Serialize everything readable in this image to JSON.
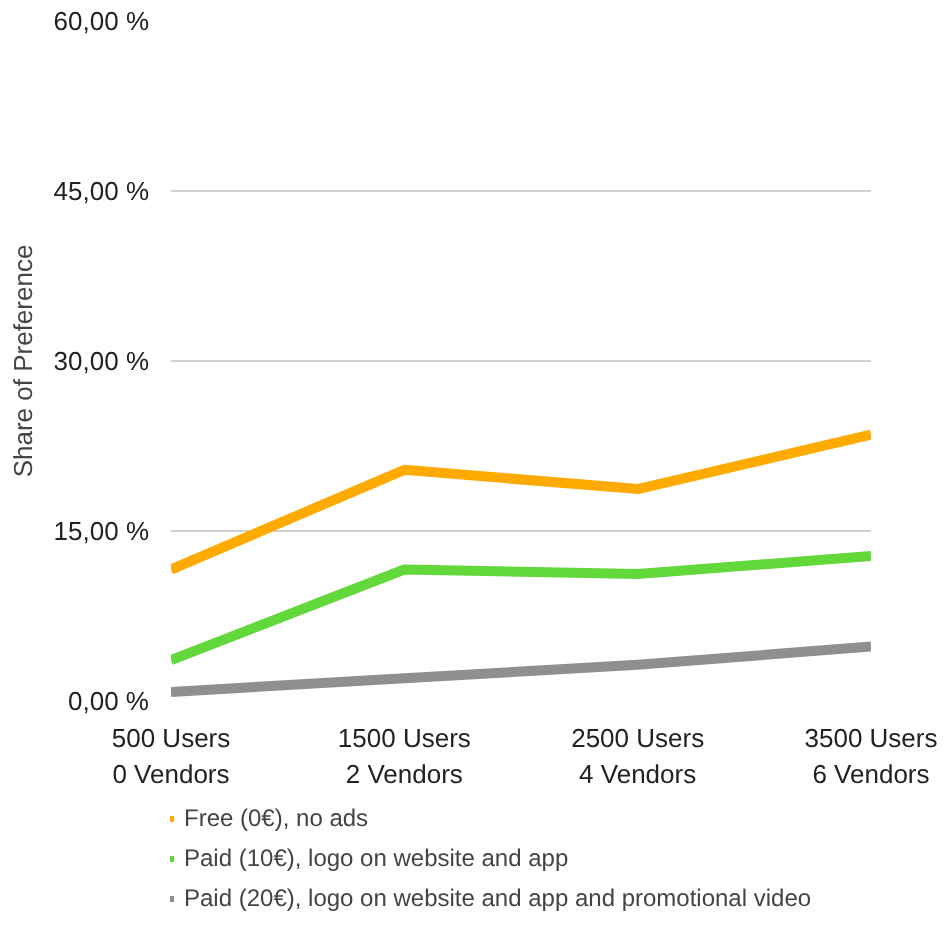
{
  "chart_data": {
    "type": "line",
    "ylabel": "Share of Preference",
    "categories": [
      "500 Users\n0 Vendors",
      "1500 Users\n2 Vendors",
      "2500 Users\n4 Vendors",
      "3500 Users\n6 Vendors"
    ],
    "series": [
      {
        "name": "Free (0€), no ads",
        "color": "#ffaa00",
        "values": [
          11.6,
          20.4,
          18.7,
          23.5
        ]
      },
      {
        "name": "Paid (10€), logo on website and app",
        "color": "#63d83a",
        "values": [
          3.6,
          11.6,
          11.2,
          12.8
        ]
      },
      {
        "name": "Paid (20€), logo on website and app and promotional video",
        "color": "#8f8f8f",
        "values": [
          0.8,
          2.0,
          3.2,
          4.8
        ]
      }
    ],
    "ylim": [
      0,
      60
    ],
    "yticks": [
      {
        "value": 0,
        "label": "0,00 %"
      },
      {
        "value": 15,
        "label": "15,00 %"
      },
      {
        "value": 30,
        "label": "30,00 %"
      },
      {
        "value": 45,
        "label": "45,00 %"
      },
      {
        "value": 60,
        "label": "60,00 %"
      }
    ],
    "grid": "y",
    "legend": "bottom",
    "marker": "none",
    "line_style": "solid"
  }
}
